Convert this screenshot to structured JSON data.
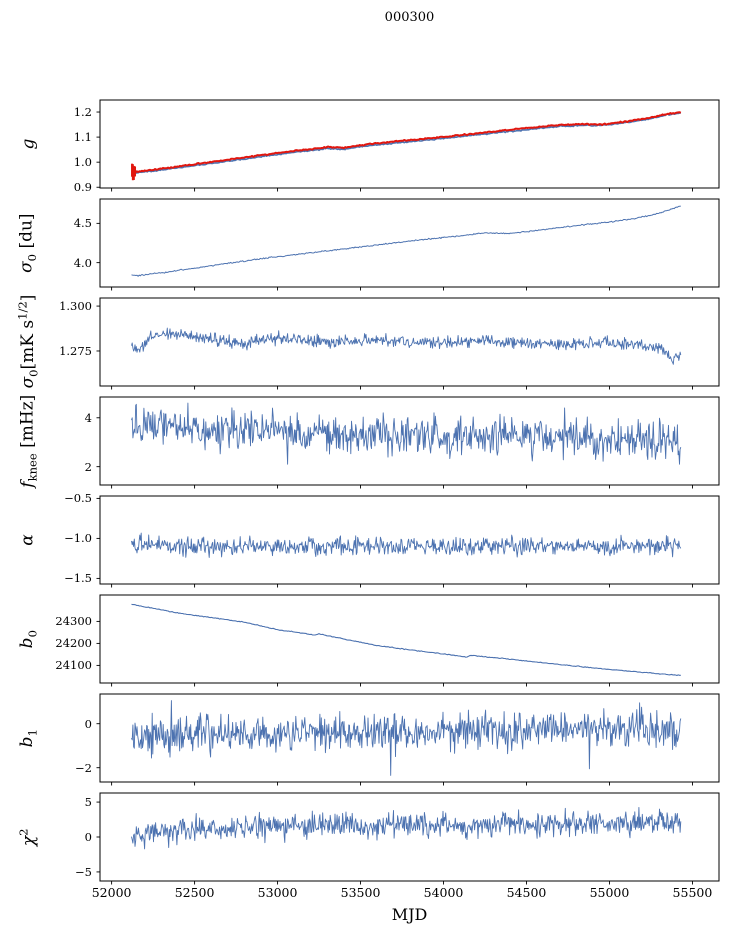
{
  "figure": {
    "title": "000300"
  },
  "colors": {
    "blue": "#4c72b0",
    "red": "#e1170f",
    "axis": "#000000",
    "text": "#000000",
    "background": "#ffffff"
  },
  "chart_data": {
    "type": "line",
    "title": "000300",
    "xlabel": "MJD",
    "grid": false,
    "legend": "none",
    "x_axis": {
      "lim": [
        51930,
        55660
      ],
      "ticks": [
        52000,
        52500,
        53000,
        53500,
        54000,
        54500,
        55000,
        55500
      ],
      "tick_labels": [
        "52000",
        "52500",
        "53000",
        "53500",
        "54000",
        "54500",
        "55000",
        "55500"
      ]
    },
    "panels": [
      {
        "id": "g",
        "ylabel_segments": [
          {
            "t": "g",
            "style": "i"
          }
        ],
        "ylim": [
          0.897,
          1.248
        ],
        "yticks": [
          0.9,
          1.0,
          1.1,
          1.2
        ],
        "ytick_labels": [
          "0.9",
          "1.0",
          "1.1",
          "1.2"
        ],
        "series": [
          {
            "name": "gain-smooth",
            "color": "#4c72b0",
            "lw": 1.6,
            "n": 420,
            "noise": 0.0012,
            "seed": 11,
            "trend": [
              [
                52120,
                0.962
              ],
              [
                52140,
                0.957
              ],
              [
                52170,
                0.959
              ],
              [
                52300,
                0.969
              ],
              [
                52500,
                0.986
              ],
              [
                52700,
                1.004
              ],
              [
                52900,
                1.022
              ],
              [
                53100,
                1.039
              ],
              [
                53300,
                1.054
              ],
              [
                53400,
                1.052
              ],
              [
                53500,
                1.062
              ],
              [
                53700,
                1.076
              ],
              [
                53900,
                1.088
              ],
              [
                54100,
                1.102
              ],
              [
                54300,
                1.116
              ],
              [
                54500,
                1.13
              ],
              [
                54700,
                1.143
              ],
              [
                54850,
                1.147
              ],
              [
                54950,
                1.146
              ],
              [
                55100,
                1.158
              ],
              [
                55250,
                1.174
              ],
              [
                55350,
                1.19
              ],
              [
                55430,
                1.197
              ]
            ]
          },
          {
            "name": "gain-fit",
            "color": "#e1170f",
            "lw": 2.0,
            "n": 420,
            "noise": 0.0012,
            "seed": 12,
            "trend": [
              [
                52120,
                0.966
              ],
              [
                52140,
                0.961
              ],
              [
                52170,
                0.963
              ],
              [
                52300,
                0.974
              ],
              [
                52500,
                0.992
              ],
              [
                52700,
                1.01
              ],
              [
                52900,
                1.028
              ],
              [
                53100,
                1.045
              ],
              [
                53300,
                1.06
              ],
              [
                53400,
                1.058
              ],
              [
                53500,
                1.068
              ],
              [
                53700,
                1.082
              ],
              [
                53900,
                1.094
              ],
              [
                54100,
                1.108
              ],
              [
                54300,
                1.122
              ],
              [
                54500,
                1.136
              ],
              [
                54700,
                1.148
              ],
              [
                54850,
                1.152
              ],
              [
                54950,
                1.15
              ],
              [
                55100,
                1.162
              ],
              [
                55250,
                1.178
              ],
              [
                55350,
                1.193
              ],
              [
                55430,
                1.198
              ]
            ]
          }
        ],
        "errorbars": {
          "color": "#e1170f",
          "points": [
            [
              52123,
              0.968,
              0.026
            ],
            [
              52128,
              0.96,
              0.032
            ],
            [
              52134,
              0.957,
              0.028
            ],
            [
              52141,
              0.963,
              0.02
            ]
          ]
        }
      },
      {
        "id": "sigma0-du",
        "ylabel_segments": [
          {
            "t": "σ",
            "style": "i"
          },
          {
            "t": "0",
            "style": "sub"
          },
          {
            "t": " [du]",
            "style": "u"
          }
        ],
        "ylim": [
          3.69,
          4.81
        ],
        "yticks": [
          4.0,
          4.5
        ],
        "ytick_labels": [
          "4.0",
          "4.5"
        ],
        "series": [
          {
            "name": "sigma0-du",
            "color": "#4c72b0",
            "lw": 1.0,
            "n": 500,
            "noise": 0.004,
            "seed": 21,
            "trend": [
              [
                52120,
                3.84
              ],
              [
                52160,
                3.835
              ],
              [
                52300,
                3.87
              ],
              [
                52500,
                3.93
              ],
              [
                52700,
                3.99
              ],
              [
                52900,
                4.05
              ],
              [
                53100,
                4.1
              ],
              [
                53300,
                4.15
              ],
              [
                53500,
                4.2
              ],
              [
                53700,
                4.25
              ],
              [
                53900,
                4.3
              ],
              [
                54100,
                4.34
              ],
              [
                54250,
                4.38
              ],
              [
                54400,
                4.37
              ],
              [
                54600,
                4.42
              ],
              [
                54800,
                4.47
              ],
              [
                55000,
                4.52
              ],
              [
                55150,
                4.56
              ],
              [
                55300,
                4.63
              ],
              [
                55430,
                4.72
              ]
            ]
          }
        ]
      },
      {
        "id": "sigma0-mks",
        "ylabel_segments": [
          {
            "t": "σ",
            "style": "i"
          },
          {
            "t": "0",
            "style": "sub"
          },
          {
            "t": "[mK s",
            "style": "u"
          },
          {
            "t": "1/2",
            "style": "sup"
          },
          {
            "t": "]",
            "style": "u"
          }
        ],
        "ylim": [
          1.2555,
          1.3045
        ],
        "yticks": [
          1.275,
          1.3
        ],
        "ytick_labels": [
          "1.275",
          "1.300"
        ],
        "series": [
          {
            "name": "sigma0-mks",
            "color": "#4c72b0",
            "lw": 0.9,
            "n": 800,
            "noise": 0.0016,
            "seed": 31,
            "trend": [
              [
                52120,
                1.278
              ],
              [
                52165,
                1.2755
              ],
              [
                52250,
                1.2835
              ],
              [
                52400,
                1.285
              ],
              [
                52600,
                1.2815
              ],
              [
                52800,
                1.2795
              ],
              [
                53000,
                1.282
              ],
              [
                53300,
                1.28
              ],
              [
                53600,
                1.2812
              ],
              [
                53900,
                1.2795
              ],
              [
                54200,
                1.281
              ],
              [
                54500,
                1.2795
              ],
              [
                54800,
                1.2785
              ],
              [
                55000,
                1.28
              ],
              [
                55150,
                1.279
              ],
              [
                55300,
                1.277
              ],
              [
                55380,
                1.2705
              ],
              [
                55430,
                1.273
              ]
            ]
          }
        ]
      },
      {
        "id": "fknee",
        "ylabel_segments": [
          {
            "t": "f",
            "style": "i"
          },
          {
            "t": "knee",
            "style": "sub"
          },
          {
            "t": " [mHz]",
            "style": "u"
          }
        ],
        "ylim": [
          1.25,
          4.85
        ],
        "yticks": [
          2,
          4
        ],
        "ytick_labels": [
          "2",
          "4"
        ],
        "series": [
          {
            "name": "fknee",
            "color": "#4c72b0",
            "lw": 0.9,
            "n": 800,
            "noise": 0.37,
            "seed": 41,
            "spikes": [
              [
                52150,
                4.55
              ],
              [
                52460,
                4.6
              ],
              [
                53060,
                2.1
              ],
              [
                54730,
                4.4
              ]
            ],
            "trend": [
              [
                52120,
                3.75
              ],
              [
                52200,
                3.7
              ],
              [
                52400,
                3.65
              ],
              [
                52600,
                3.55
              ],
              [
                52900,
                3.5
              ],
              [
                53200,
                3.42
              ],
              [
                53600,
                3.35
              ],
              [
                54000,
                3.3
              ],
              [
                54400,
                3.22
              ],
              [
                54800,
                3.12
              ],
              [
                55200,
                3.05
              ],
              [
                55430,
                2.95
              ]
            ]
          }
        ]
      },
      {
        "id": "alpha",
        "ylabel_segments": [
          {
            "t": "α",
            "style": "i"
          }
        ],
        "ylim": [
          -1.57,
          -0.47
        ],
        "yticks": [
          -1.5,
          -1.0,
          -0.5
        ],
        "ytick_labels": [
          "−1.5",
          "−1.0",
          "−0.5"
        ],
        "series": [
          {
            "name": "alpha",
            "color": "#4c72b0",
            "lw": 0.9,
            "n": 800,
            "noise": 0.055,
            "seed": 51,
            "trend": [
              [
                52120,
                -1.08
              ],
              [
                52500,
                -1.1
              ],
              [
                53000,
                -1.11
              ],
              [
                53500,
                -1.1
              ],
              [
                54000,
                -1.11
              ],
              [
                54500,
                -1.1
              ],
              [
                55000,
                -1.1
              ],
              [
                55430,
                -1.1
              ]
            ]
          }
        ]
      },
      {
        "id": "b0",
        "ylabel_segments": [
          {
            "t": "b",
            "style": "i"
          },
          {
            "t": "0",
            "style": "sub"
          }
        ],
        "ylim": [
          24020,
          24420
        ],
        "yticks": [
          24100,
          24200,
          24300
        ],
        "ytick_labels": [
          "24100",
          "24200",
          "24300"
        ],
        "series": [
          {
            "name": "b0",
            "color": "#4c72b0",
            "lw": 1.1,
            "n": 420,
            "noise": 0.9,
            "seed": 61,
            "trend": [
              [
                52120,
                24378
              ],
              [
                52260,
                24358
              ],
              [
                52420,
                24336
              ],
              [
                52600,
                24317
              ],
              [
                52800,
                24297
              ],
              [
                53000,
                24262
              ],
              [
                53230,
                24238
              ],
              [
                53245,
                24244
              ],
              [
                53400,
                24220
              ],
              [
                53600,
                24190
              ],
              [
                53800,
                24170
              ],
              [
                54000,
                24152
              ],
              [
                54140,
                24138
              ],
              [
                54165,
                24146
              ],
              [
                54350,
                24132
              ],
              [
                54550,
                24116
              ],
              [
                54750,
                24100
              ],
              [
                54950,
                24085
              ],
              [
                55150,
                24072
              ],
              [
                55300,
                24062
              ],
              [
                55430,
                24054
              ]
            ]
          }
        ]
      },
      {
        "id": "b1",
        "ylabel_segments": [
          {
            "t": "b",
            "style": "i"
          },
          {
            "t": "1",
            "style": "sub"
          }
        ],
        "ylim": [
          -2.65,
          1.35
        ],
        "yticks": [
          -2,
          0
        ],
        "ytick_labels": [
          "−2",
          "0"
        ],
        "series": [
          {
            "name": "b1",
            "color": "#4c72b0",
            "lw": 0.9,
            "n": 800,
            "noise": 0.42,
            "seed": 71,
            "spikes": [
              [
                52360,
                1.05
              ],
              [
                53680,
                -2.35
              ],
              [
                54880,
                -2.05
              ],
              [
                55180,
                0.95
              ]
            ],
            "trend": [
              [
                52120,
                -0.45
              ],
              [
                52600,
                -0.48
              ],
              [
                53000,
                -0.42
              ],
              [
                53400,
                -0.35
              ],
              [
                53800,
                -0.3
              ],
              [
                54200,
                -0.28
              ],
              [
                54600,
                -0.22
              ],
              [
                55000,
                -0.2
              ],
              [
                55430,
                -0.28
              ]
            ]
          }
        ]
      },
      {
        "id": "chi2",
        "ylabel_segments": [
          {
            "t": "χ",
            "style": "i"
          },
          {
            "t": "2",
            "style": "sup"
          }
        ],
        "ylim": [
          -6.3,
          6.3
        ],
        "yticks": [
          -5,
          0,
          5
        ],
        "ytick_labels": [
          "−5",
          "0",
          "5"
        ],
        "series": [
          {
            "name": "chi2",
            "color": "#4c72b0",
            "lw": 0.9,
            "n": 800,
            "noise": 0.85,
            "seed": 81,
            "spikes": [
              [
                52200,
                -1.7
              ],
              [
                52345,
                -1.5
              ],
              [
                53700,
                3.8
              ],
              [
                55300,
                4.0
              ]
            ],
            "trend": [
              [
                52120,
                -0.3
              ],
              [
                52160,
                0.3
              ],
              [
                52250,
                0.9
              ],
              [
                52400,
                1.2
              ],
              [
                52700,
                1.4
              ],
              [
                53000,
                1.5
              ],
              [
                53500,
                1.6
              ],
              [
                54000,
                1.7
              ],
              [
                54500,
                1.85
              ],
              [
                55000,
                1.95
              ],
              [
                55430,
                2.1
              ]
            ]
          }
        ]
      }
    ]
  }
}
